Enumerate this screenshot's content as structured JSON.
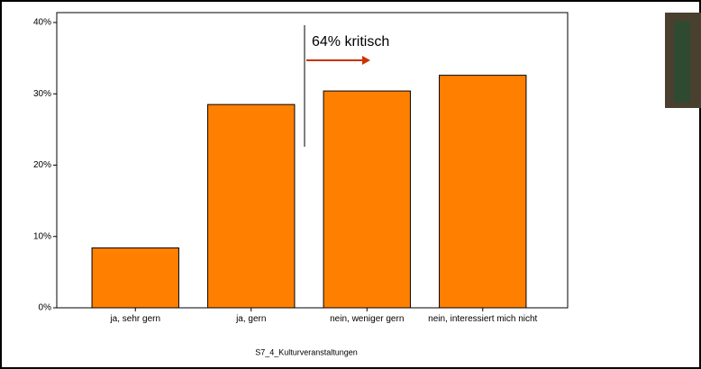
{
  "chart_data": {
    "type": "bar",
    "categories": [
      "ja, sehr gern",
      "ja, gern",
      "nein, weniger gern",
      "nein, interessiert mich nicht"
    ],
    "values": [
      8.4,
      28.5,
      30.4,
      32.6
    ],
    "color": "#ff8000",
    "ylim": [
      0,
      40
    ],
    "yticks": [
      {
        "value": 0,
        "label": "0%"
      },
      {
        "value": 10,
        "label": "10%"
      },
      {
        "value": 20,
        "label": "20%"
      },
      {
        "value": 30,
        "label": "30%"
      },
      {
        "value": 40,
        "label": "40%"
      }
    ],
    "x_label": "S7_4_Kulturveranstaltungen",
    "annotation": "64% kritisch",
    "annotation_color": "#cc3300"
  }
}
